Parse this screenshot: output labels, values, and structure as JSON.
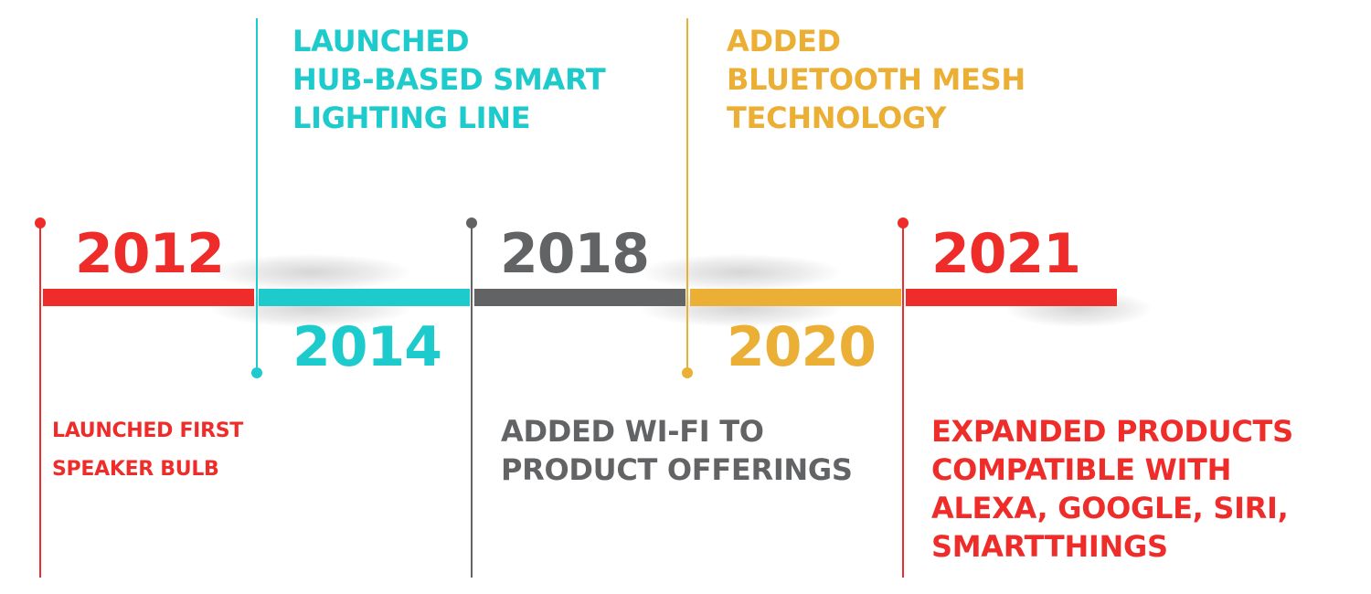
{
  "colors": {
    "red": "#ee2d2b",
    "teal": "#1ecbcc",
    "gray": "#626365",
    "gold": "#ecaf35"
  },
  "milestones": [
    {
      "year": "2012",
      "color": "red",
      "lines": [
        "LAUNCHED FIRST",
        "SPEAKER BULB"
      ]
    },
    {
      "year": "2014",
      "color": "teal",
      "lines": [
        "LAUNCHED",
        "HUB-BASED SMART",
        "LIGHTING LINE"
      ]
    },
    {
      "year": "2018",
      "color": "gray",
      "lines": [
        "ADDED WI-FI TO",
        "PRODUCT OFFERINGS"
      ]
    },
    {
      "year": "2020",
      "color": "gold",
      "lines": [
        "ADDED",
        "BLUETOOTH MESH",
        "TECHNOLOGY"
      ]
    },
    {
      "year": "2021",
      "color": "red",
      "lines": [
        "EXPANDED PRODUCTS",
        "COMPATIBLE WITH",
        "ALEXA, GOOGLE, SIRI,",
        "SMARTTHINGS"
      ]
    }
  ]
}
